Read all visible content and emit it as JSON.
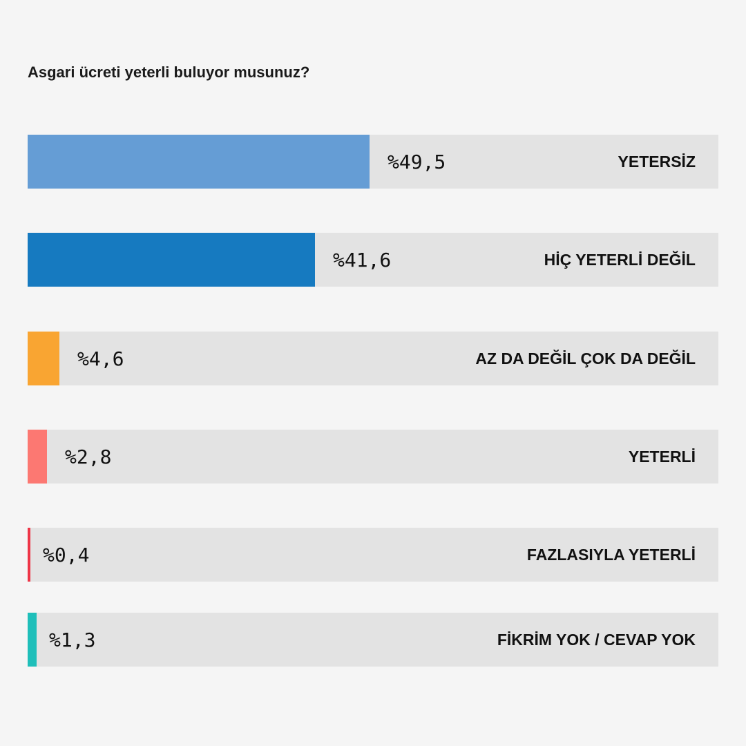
{
  "chart_data": {
    "type": "bar",
    "orientation": "horizontal",
    "title": "Asgari ücreti yeterli buluyor musunuz?",
    "xlim": [
      0,
      100
    ],
    "grid": false,
    "legend": "none",
    "bars": [
      {
        "label": "YETERSİZ",
        "value": 49.5,
        "value_text": "%49,5",
        "color": "#659dd5"
      },
      {
        "label": "HİÇ YETERLİ DEĞİL",
        "value": 41.6,
        "value_text": "%41,6",
        "color": "#167ac0"
      },
      {
        "label": "AZ DA DEĞİL ÇOK DA DEĞİL",
        "value": 4.6,
        "value_text": "%4,6",
        "color": "#f9a532"
      },
      {
        "label": "YETERLİ",
        "value": 2.8,
        "value_text": "%2,8",
        "color": "#fc7872"
      },
      {
        "label": "FAZLASIYLA YETERLİ",
        "value": 0.4,
        "value_text": "%0,4",
        "color": "#ee3547"
      },
      {
        "label": "FİKRİM YOK / CEVAP YOK",
        "value": 1.3,
        "value_text": "%1,3",
        "color": "#1fbfba"
      }
    ]
  }
}
